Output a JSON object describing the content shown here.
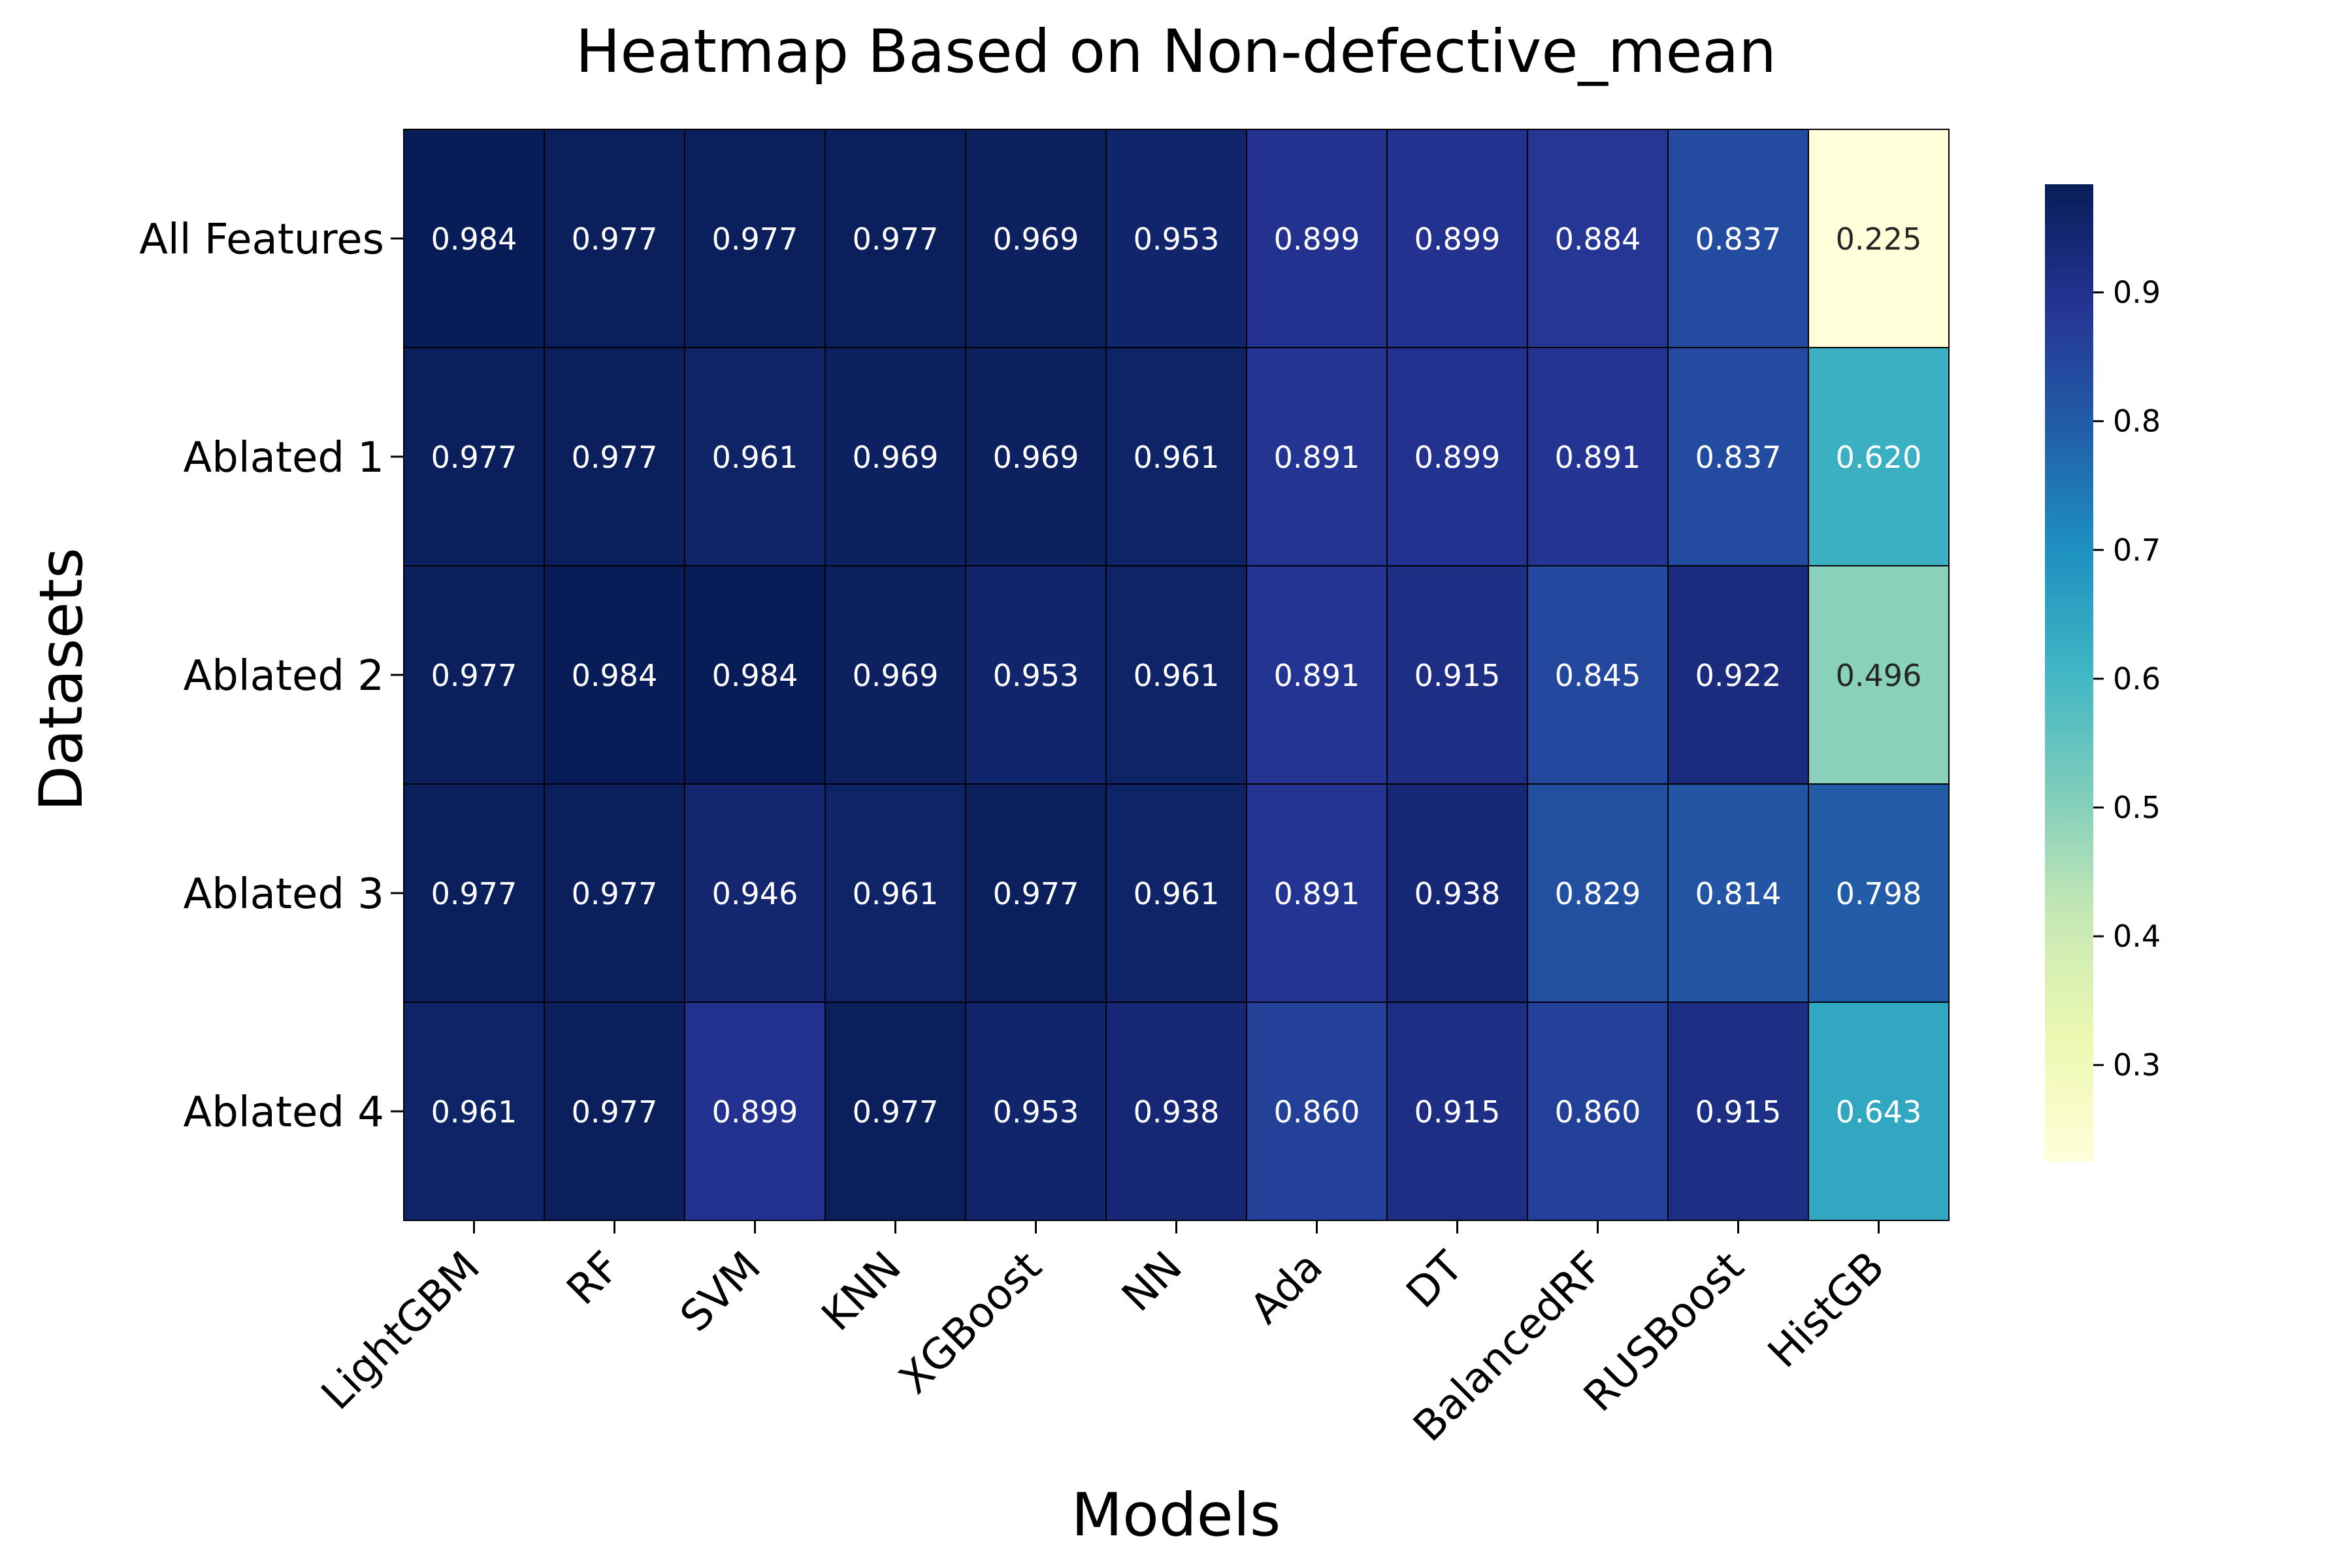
{
  "chart_data": {
    "type": "heatmap",
    "title": "Heatmap Based on Non-defective_mean",
    "xlabel": "Models",
    "ylabel": "Datasets",
    "x": [
      "LightGBM",
      "RF",
      "SVM",
      "KNN",
      "XGBoost",
      "NN",
      "Ada",
      "DT",
      "BalancedRF",
      "RUSBoost",
      "HistGB"
    ],
    "y": [
      "All Features",
      "Ablated 1",
      "Ablated 2",
      "Ablated 3",
      "Ablated 4"
    ],
    "values": [
      [
        0.984,
        0.977,
        0.977,
        0.977,
        0.969,
        0.953,
        0.899,
        0.899,
        0.884,
        0.837,
        0.225
      ],
      [
        0.977,
        0.977,
        0.961,
        0.969,
        0.969,
        0.961,
        0.891,
        0.899,
        0.891,
        0.837,
        0.62
      ],
      [
        0.977,
        0.984,
        0.984,
        0.969,
        0.953,
        0.961,
        0.891,
        0.915,
        0.845,
        0.922,
        0.496
      ],
      [
        0.977,
        0.977,
        0.946,
        0.961,
        0.977,
        0.961,
        0.891,
        0.938,
        0.829,
        0.814,
        0.798
      ],
      [
        0.961,
        0.977,
        0.899,
        0.977,
        0.953,
        0.938,
        0.86,
        0.915,
        0.86,
        0.915,
        0.643
      ]
    ],
    "value_format": "0.000",
    "colormap": "YlGnBu",
    "color_range": [
      0.225,
      0.984
    ],
    "colorbar_ticks": [
      "0.3",
      "0.4",
      "0.5",
      "0.6",
      "0.7",
      "0.8",
      "0.9"
    ],
    "cell_border_color": "#000000"
  }
}
